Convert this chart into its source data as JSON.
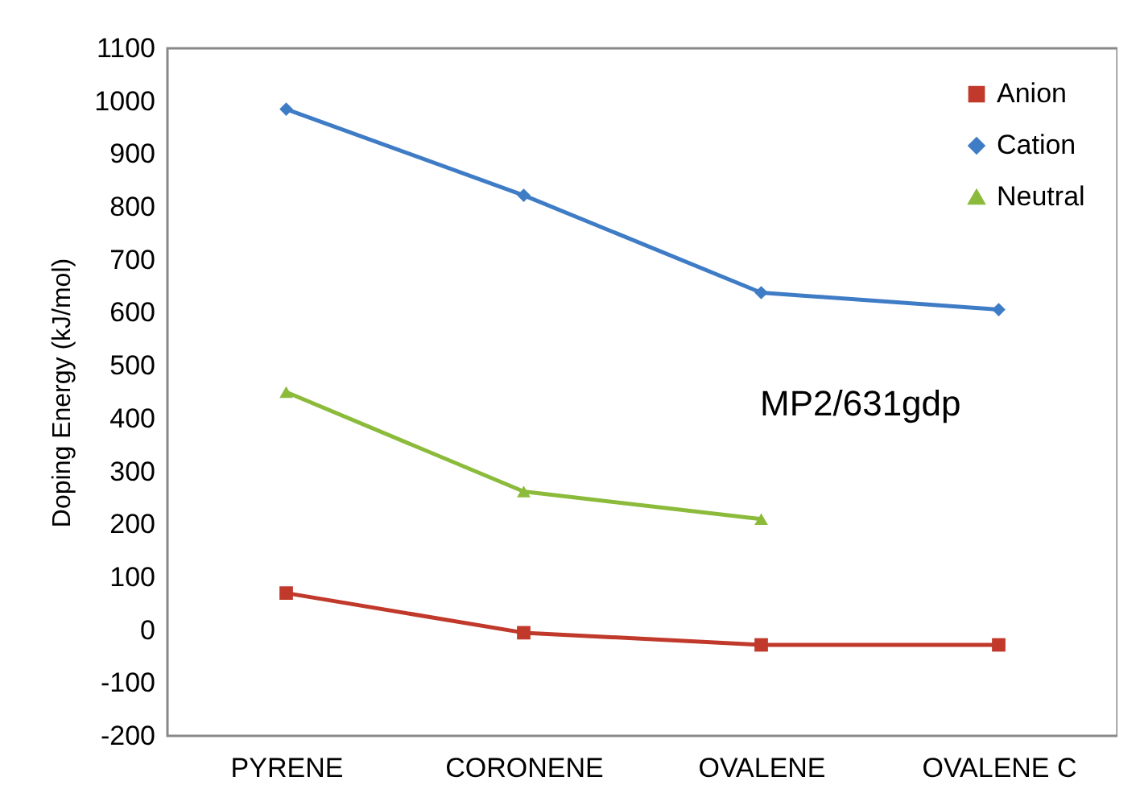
{
  "chart_data": {
    "type": "line",
    "ylabel": "Doping Energy (kJ/mol)",
    "categories": [
      "PYRENE",
      "CORONENE",
      "OVALENE",
      "OVALENE C"
    ],
    "series": [
      {
        "name": "Anion",
        "color": "#c0392b",
        "marker": "square",
        "values": [
          70,
          -5,
          -28,
          -28
        ]
      },
      {
        "name": "Cation",
        "color": "#3f7cc6",
        "marker": "diamond",
        "values": [
          985,
          822,
          638,
          606
        ]
      },
      {
        "name": "Neutral",
        "color": "#8cbb3c",
        "marker": "triangle",
        "values": [
          450,
          262,
          210,
          null
        ]
      }
    ],
    "ylim": [
      -200,
      1100
    ],
    "yticks": [
      -200,
      -100,
      0,
      100,
      200,
      300,
      400,
      500,
      600,
      700,
      800,
      900,
      1000,
      1100
    ],
    "annotations": [
      "MP2/631gdp"
    ],
    "legend": "top right",
    "grid": false
  }
}
